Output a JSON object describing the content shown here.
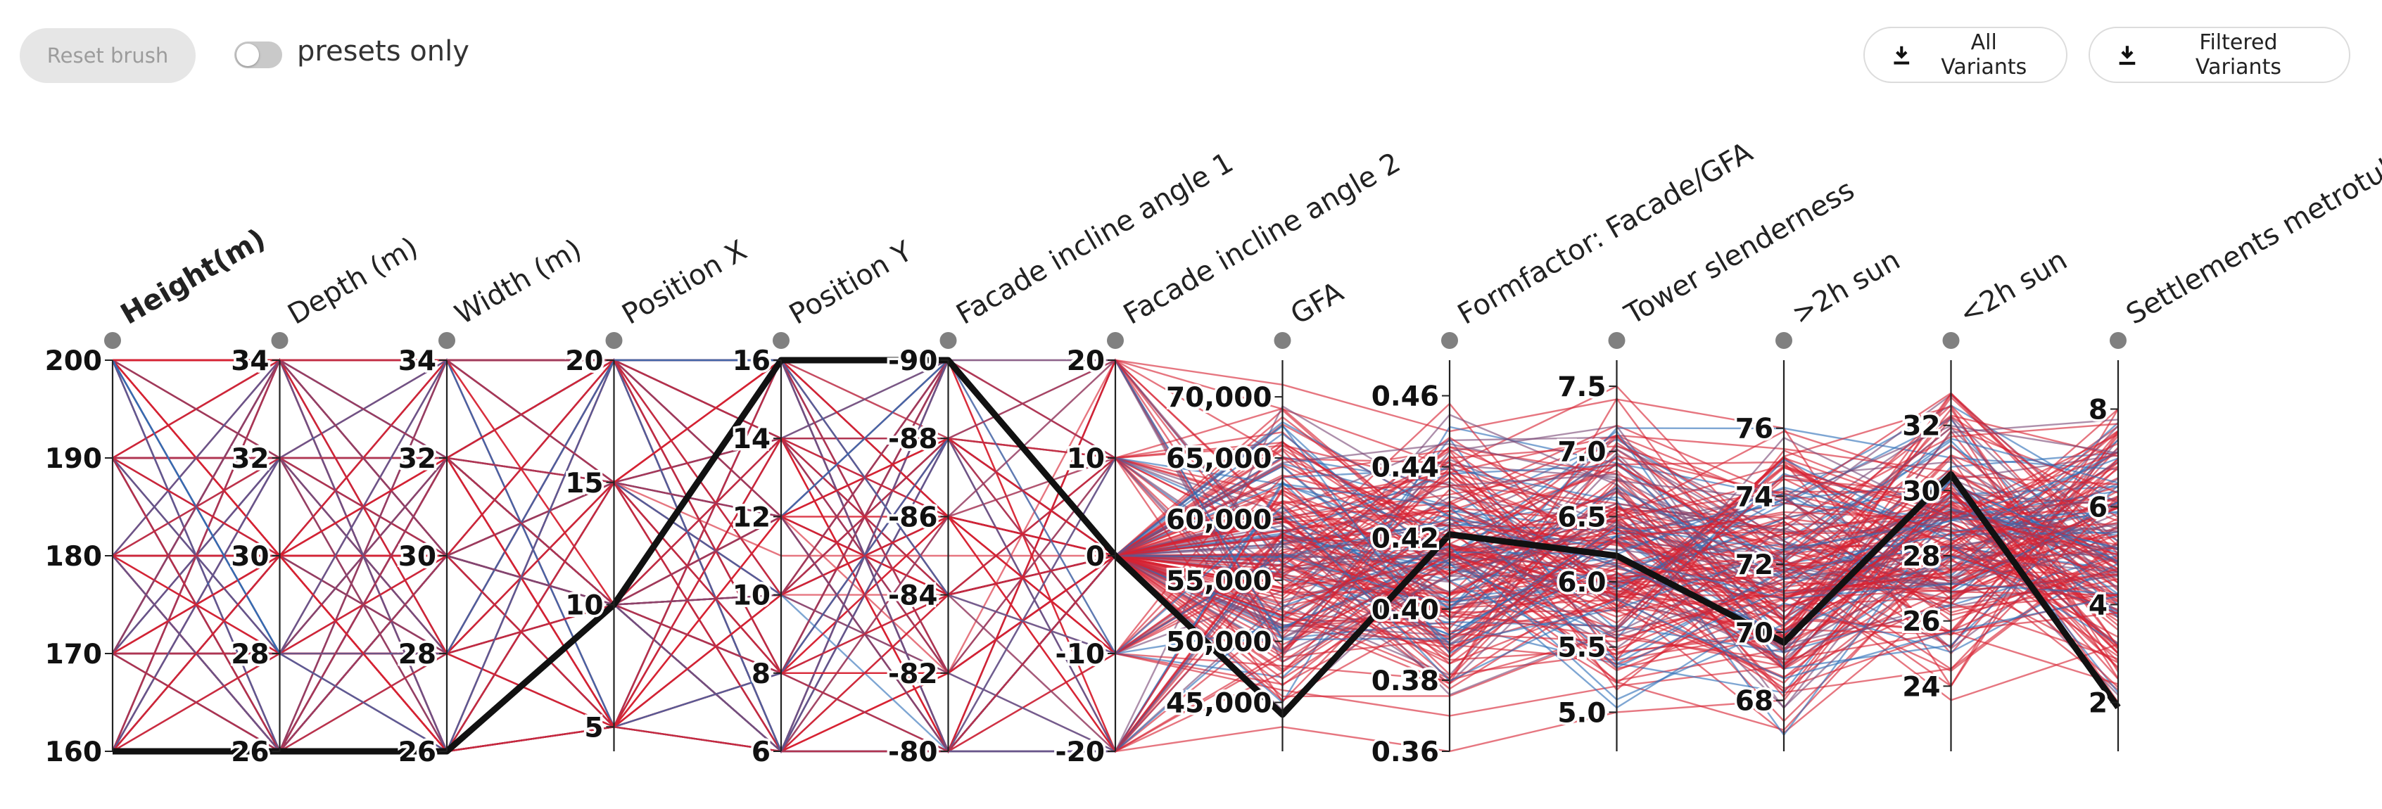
{
  "toolbar": {
    "reset_label": "Reset brush",
    "toggle_label": "presets only",
    "toggle_on": false,
    "download_all_label": "All Variants",
    "download_filtered_label": "Filtered Variants",
    "download_icon": "download-icon"
  },
  "colors": {
    "red": "#d62232",
    "blue": "#2f6fb8",
    "purple": "#7a4a78",
    "highlight": "#111111",
    "axis": "#222222",
    "handle": "#808080"
  },
  "chart_data": {
    "type": "parallel-coordinates",
    "axes": [
      {
        "key": "height",
        "label": "Height(m)",
        "bold": true,
        "range": [
          160,
          200
        ],
        "ticks": [
          {
            "v": 160,
            "t": "160"
          },
          {
            "v": 170,
            "t": "170"
          },
          {
            "v": 180,
            "t": "180"
          },
          {
            "v": 190,
            "t": "190"
          },
          {
            "v": 200,
            "t": "200"
          }
        ]
      },
      {
        "key": "depth",
        "label": "Depth (m)",
        "range": [
          26,
          34
        ],
        "ticks": [
          {
            "v": 26,
            "t": "26"
          },
          {
            "v": 28,
            "t": "28"
          },
          {
            "v": 30,
            "t": "30"
          },
          {
            "v": 32,
            "t": "32"
          },
          {
            "v": 34,
            "t": "34"
          }
        ]
      },
      {
        "key": "width",
        "label": "Width (m)",
        "range": [
          26,
          34
        ],
        "ticks": [
          {
            "v": 26,
            "t": "26"
          },
          {
            "v": 28,
            "t": "28"
          },
          {
            "v": 30,
            "t": "30"
          },
          {
            "v": 32,
            "t": "32"
          },
          {
            "v": 34,
            "t": "34"
          }
        ]
      },
      {
        "key": "posx",
        "label": "Position X",
        "range": [
          4,
          20
        ],
        "ticks": [
          {
            "v": 5,
            "t": "5"
          },
          {
            "v": 10,
            "t": "10"
          },
          {
            "v": 15,
            "t": "15"
          },
          {
            "v": 20,
            "t": "20"
          }
        ]
      },
      {
        "key": "posy",
        "label": "Position Y",
        "range": [
          6,
          16
        ],
        "ticks": [
          {
            "v": 6,
            "t": "6"
          },
          {
            "v": 8,
            "t": "8"
          },
          {
            "v": 10,
            "t": "10"
          },
          {
            "v": 12,
            "t": "12"
          },
          {
            "v": 14,
            "t": "14"
          },
          {
            "v": 16,
            "t": "16"
          }
        ]
      },
      {
        "key": "angle1",
        "label": "Facade incline angle 1",
        "range": [
          -90,
          -80
        ],
        "reversed": true,
        "ticks": [
          {
            "v": -80,
            "t": "-80"
          },
          {
            "v": -82,
            "t": "-82"
          },
          {
            "v": -84,
            "t": "-84"
          },
          {
            "v": -86,
            "t": "-86"
          },
          {
            "v": -88,
            "t": "-88"
          },
          {
            "v": -90,
            "t": "-90"
          }
        ]
      },
      {
        "key": "angle2",
        "label": "Facade incline angle 2",
        "range": [
          -20,
          20
        ],
        "ticks": [
          {
            "v": -20,
            "t": "-20"
          },
          {
            "v": -10,
            "t": "-10"
          },
          {
            "v": 0,
            "t": "0"
          },
          {
            "v": 10,
            "t": "10"
          },
          {
            "v": 20,
            "t": "20"
          }
        ]
      },
      {
        "key": "gfa",
        "label": "GFA",
        "range": [
          41000,
          73000
        ],
        "ticks": [
          {
            "v": 45000,
            "t": "45,000"
          },
          {
            "v": 50000,
            "t": "50,000"
          },
          {
            "v": 55000,
            "t": "55,000"
          },
          {
            "v": 60000,
            "t": "60,000"
          },
          {
            "v": 65000,
            "t": "65,000"
          },
          {
            "v": 70000,
            "t": "70,000"
          }
        ]
      },
      {
        "key": "formfactor",
        "label": "Formfactor: Facade/GFA",
        "range": [
          0.36,
          0.47
        ],
        "ticks": [
          {
            "v": 0.36,
            "t": "0.36"
          },
          {
            "v": 0.38,
            "t": "0.38"
          },
          {
            "v": 0.4,
            "t": "0.40"
          },
          {
            "v": 0.42,
            "t": "0.42"
          },
          {
            "v": 0.44,
            "t": "0.44"
          },
          {
            "v": 0.46,
            "t": "0.46"
          }
        ]
      },
      {
        "key": "slender",
        "label": "Tower slenderness",
        "range": [
          4.7,
          7.7
        ],
        "ticks": [
          {
            "v": 5.0,
            "t": "5.0"
          },
          {
            "v": 5.5,
            "t": "5.5"
          },
          {
            "v": 6.0,
            "t": "6.0"
          },
          {
            "v": 6.5,
            "t": "6.5"
          },
          {
            "v": 7.0,
            "t": "7.0"
          },
          {
            "v": 7.5,
            "t": "7.5"
          }
        ]
      },
      {
        "key": "sun2",
        "label": ">2h sun",
        "range": [
          66.5,
          78
        ],
        "ticks": [
          {
            "v": 68,
            "t": "68"
          },
          {
            "v": 70,
            "t": "70"
          },
          {
            "v": 72,
            "t": "72"
          },
          {
            "v": 74,
            "t": "74"
          },
          {
            "v": 76,
            "t": "76"
          }
        ]
      },
      {
        "key": "sunless",
        "label": "<2h sun",
        "range": [
          22,
          34
        ],
        "ticks": [
          {
            "v": 24,
            "t": "24"
          },
          {
            "v": 26,
            "t": "26"
          },
          {
            "v": 28,
            "t": "28"
          },
          {
            "v": 30,
            "t": "30"
          },
          {
            "v": 32,
            "t": "32"
          }
        ]
      },
      {
        "key": "settle",
        "label": "Settlements metrotube",
        "range": [
          1,
          9
        ],
        "ticks": [
          {
            "v": 2,
            "t": "2"
          },
          {
            "v": 4,
            "t": "4"
          },
          {
            "v": 6,
            "t": "6"
          },
          {
            "v": 8,
            "t": "8"
          }
        ]
      }
    ],
    "highlighted": [
      160,
      26,
      26,
      10,
      16,
      -90,
      0,
      44000,
      0.421,
      6.2,
      69.7,
      30.5,
      1.9
    ],
    "variants_sample": [
      [
        200,
        34,
        34,
        20,
        16,
        -80,
        20,
        69000,
        0.44,
        7.5,
        72,
        28,
        8
      ],
      [
        200,
        26,
        34,
        20,
        6,
        -90,
        -20,
        43000,
        0.36,
        5.0,
        68,
        30,
        3
      ],
      [
        190,
        34,
        26,
        10,
        12,
        -84,
        10,
        62000,
        0.41,
        6.6,
        73,
        27,
        6
      ],
      [
        180,
        30,
        30,
        15,
        11,
        -85,
        0,
        57000,
        0.4,
        6.1,
        71,
        29,
        4
      ],
      [
        170,
        34,
        26,
        5,
        8,
        -88,
        -10,
        48000,
        0.38,
        5.6,
        69,
        30,
        3
      ],
      [
        160,
        26,
        30,
        20,
        16,
        -80,
        20,
        60000,
        0.43,
        7.2,
        74,
        26,
        5
      ],
      [
        190,
        30,
        34,
        5,
        6,
        -90,
        -20,
        52000,
        0.39,
        5.4,
        70,
        31,
        2
      ],
      [
        200,
        28,
        28,
        15,
        14,
        -82,
        10,
        66000,
        0.42,
        6.9,
        75,
        25,
        7
      ],
      [
        170,
        32,
        32,
        10,
        10,
        -86,
        0,
        54000,
        0.4,
        6.0,
        71,
        28,
        4
      ],
      [
        180,
        26,
        26,
        20,
        8,
        -88,
        -10,
        46000,
        0.37,
        5.2,
        69,
        30,
        2
      ],
      [
        160,
        34,
        34,
        5,
        12,
        -84,
        10,
        58000,
        0.41,
        6.4,
        72,
        27,
        6
      ],
      [
        200,
        30,
        26,
        10,
        16,
        -80,
        20,
        71000,
        0.45,
        7.4,
        76,
        24,
        8
      ]
    ]
  }
}
